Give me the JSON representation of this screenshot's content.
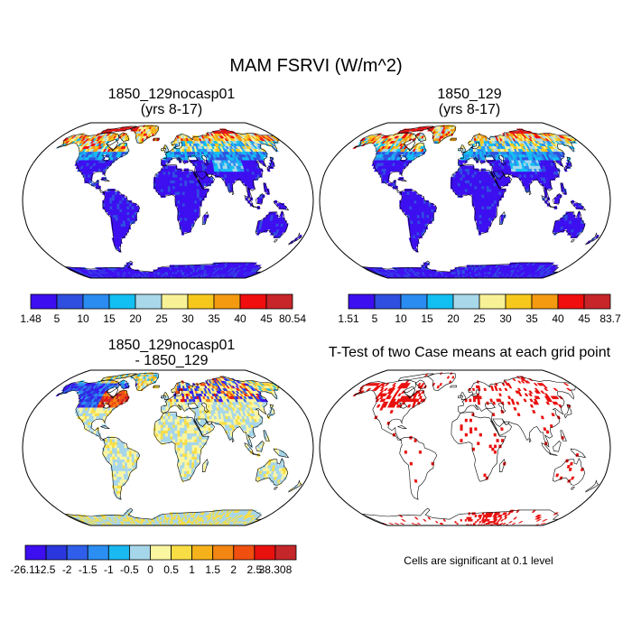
{
  "main_title": "MAM FSRVI (W/m^2)",
  "colors": {
    "abs_scale": [
      "#3c0ef0",
      "#2f4fe0",
      "#2a8cf0",
      "#12bff2",
      "#a8d8ea",
      "#f8f296",
      "#f7c81c",
      "#f39a10",
      "#f00e0e",
      "#c6252a"
    ],
    "diff_scale": [
      "#3c0ef0",
      "#2a37de",
      "#2f5fea",
      "#2b8ef2",
      "#1ab9f2",
      "#a6d6ea",
      "#fbf6a0",
      "#f8dd44",
      "#f6b21a",
      "#f38512",
      "#f04f10",
      "#e8110e",
      "#c5262a"
    ],
    "significance": "#e8100e",
    "ocean": "#ffffff",
    "coast": "#000000"
  },
  "chart_data": [
    {
      "type": "heatmap",
      "panel": "top-left",
      "title": [
        "1850_129nocasp01",
        "(yrs 8-17)"
      ],
      "colorbar_labels": [
        "1.48",
        "5",
        "10",
        "15",
        "20",
        "25",
        "30",
        "35",
        "40",
        "45",
        "80.54"
      ],
      "levels": [
        1.48,
        5,
        10,
        15,
        20,
        25,
        30,
        35,
        40,
        45,
        80.54
      ]
    },
    {
      "type": "heatmap",
      "panel": "top-right",
      "title": [
        "1850_129",
        "(yrs 8-17)"
      ],
      "colorbar_labels": [
        "1.51",
        "5",
        "10",
        "15",
        "20",
        "25",
        "30",
        "35",
        "40",
        "45",
        "83.7"
      ],
      "levels": [
        1.51,
        5,
        10,
        15,
        20,
        25,
        30,
        35,
        40,
        45,
        83.7
      ]
    },
    {
      "type": "heatmap",
      "panel": "bottom-left",
      "title": [
        "1850_129nocasp01",
        "- 1850_129"
      ],
      "colorbar_labels": [
        "-26.11",
        "-2.5",
        "-2",
        "-1.5",
        "-1",
        "-0.5",
        "0",
        "0.5",
        "1",
        "1.5",
        "2",
        "2.5",
        "38.308"
      ],
      "levels": [
        -26.11,
        -2.5,
        -2,
        -1.5,
        -1,
        -0.5,
        0,
        0.5,
        1,
        1.5,
        2,
        2.5,
        38.308
      ]
    },
    {
      "type": "heatmap",
      "panel": "bottom-right",
      "title": [
        "T-Test of two Case means at each grid point"
      ],
      "footnote": "Cells are significant at 0.1 level"
    }
  ]
}
